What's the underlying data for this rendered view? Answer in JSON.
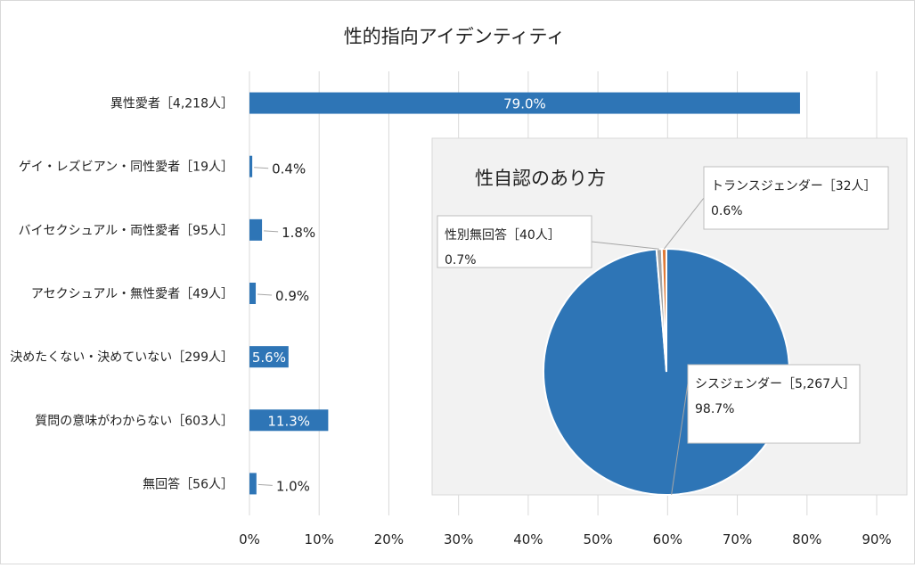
{
  "chart_data": [
    {
      "type": "bar",
      "orientation": "horizontal",
      "title": "性的指向アイデンティティ",
      "categories": [
        "異性愛者［4,218人］",
        "ゲイ・レズビアン・同性愛者［19人］",
        "バイセクシュアル・両性愛者［95人］",
        "アセクシュアル・無性愛者［49人］",
        "決めたくない・決めていない［299人］",
        "質問の意味がわからない［603人］",
        "無回答［56人］"
      ],
      "values": [
        79.0,
        0.4,
        1.8,
        0.9,
        5.6,
        11.3,
        1.0
      ],
      "data_labels": [
        "79.0%",
        "0.4%",
        "1.8%",
        "0.9%",
        "5.6%",
        "11.3%",
        "1.0%"
      ],
      "xlim": [
        0,
        90
      ],
      "x_ticks": [
        "0%",
        "10%",
        "20%",
        "30%",
        "40%",
        "50%",
        "60%",
        "70%",
        "80%",
        "90%"
      ],
      "grid": true,
      "color": "#2e75b6"
    },
    {
      "type": "pie",
      "title": "性自認のあり方",
      "slices": [
        {
          "label": "シスジェンダー［5,267人］",
          "value": 98.7,
          "value_label": "98.7%",
          "color": "#2e75b6"
        },
        {
          "label": "トランスジェンダー［32人］",
          "value": 0.6,
          "value_label": "0.6%",
          "color": "#e07b39"
        },
        {
          "label": "性別無回答［40人］",
          "value": 0.7,
          "value_label": "0.7%",
          "color": "#a5a5a5"
        }
      ]
    }
  ]
}
